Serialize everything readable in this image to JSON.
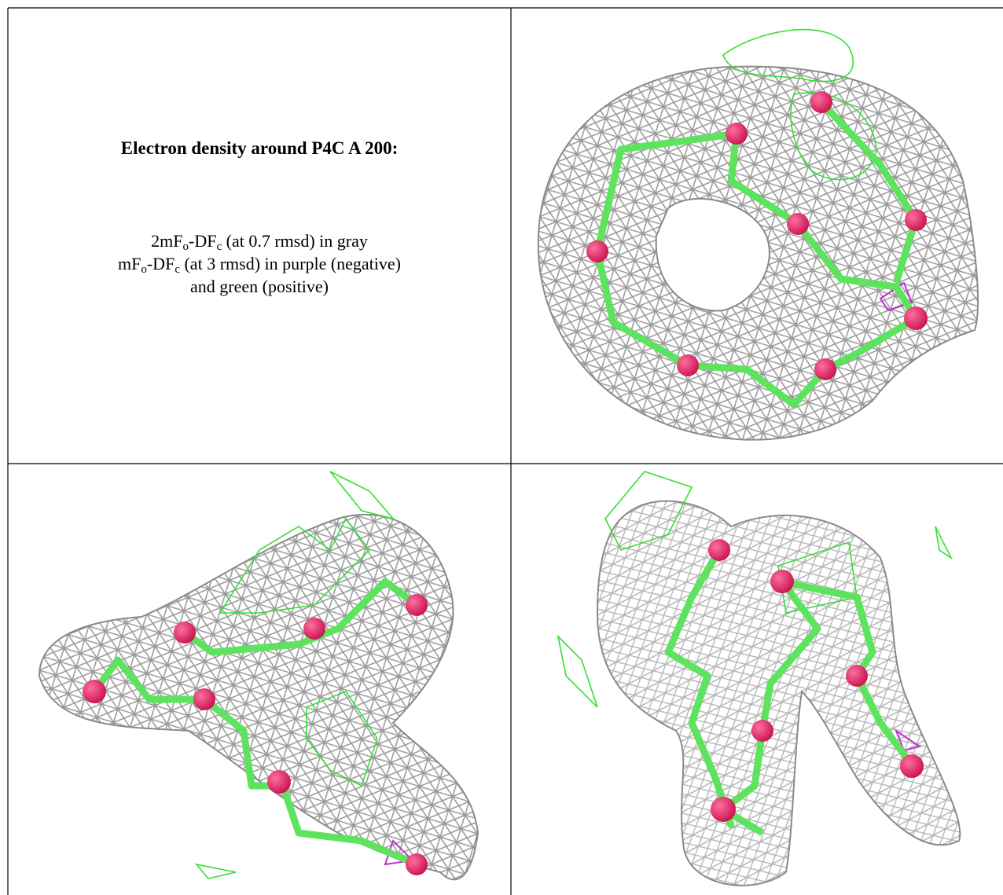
{
  "caption": {
    "title": "Electron density around P4C A 200:",
    "lines": [
      [
        "2mF",
        "o",
        "-DF",
        "c",
        " (at 0.7 rmsd) in gray"
      ],
      [
        "mF",
        "o",
        "-DF",
        "c",
        " (at 3 rmsd) in purple (negative)"
      ],
      [
        "and green (positive)"
      ]
    ]
  }
}
